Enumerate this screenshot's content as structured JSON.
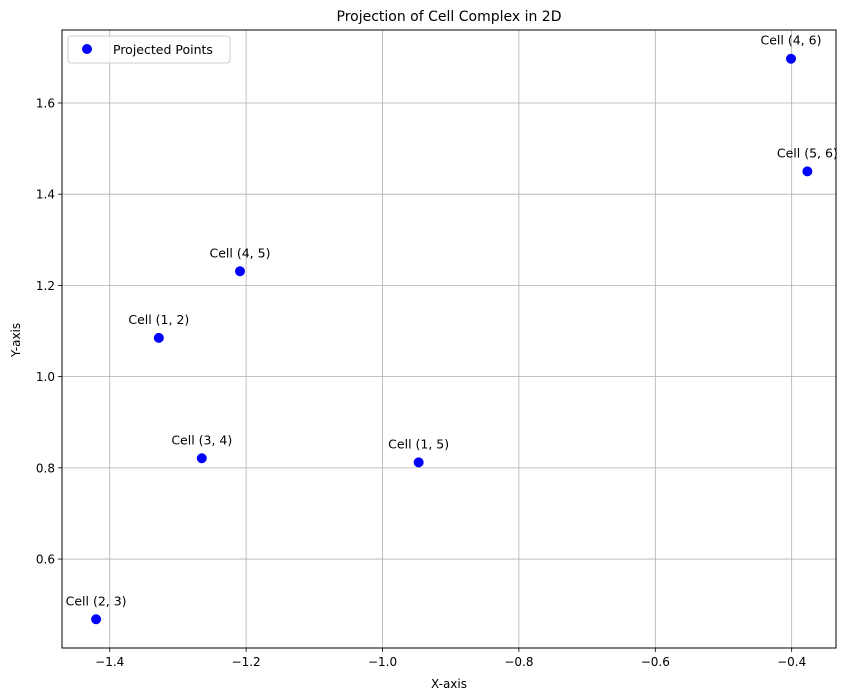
{
  "chart_data": {
    "type": "scatter",
    "title": "Projection of Cell Complex in 2D",
    "xlabel": "X-axis",
    "ylabel": "Y-axis",
    "xlim": [
      -1.47,
      -0.335
    ],
    "ylim": [
      0.405,
      1.76
    ],
    "xticks": [
      -1.4,
      -1.2,
      -1.0,
      -0.8,
      -0.6,
      -0.4
    ],
    "xtick_labels": [
      "−1.4",
      "−1.2",
      "−1.0",
      "−0.8",
      "−0.6",
      "−0.4"
    ],
    "yticks": [
      0.6,
      0.8,
      1.0,
      1.2,
      1.4,
      1.6
    ],
    "ytick_labels": [
      "0.6",
      "0.8",
      "1.0",
      "1.2",
      "1.4",
      "1.6"
    ],
    "grid": true,
    "legend_position": "upper-left",
    "series": [
      {
        "name": "Projected Points",
        "color": "#0000ff",
        "points": [
          {
            "x": -1.328,
            "y": 1.085,
            "label": "Cell (1, 2)"
          },
          {
            "x": -0.947,
            "y": 0.812,
            "label": "Cell (1, 5)"
          },
          {
            "x": -1.42,
            "y": 0.468,
            "label": "Cell (2, 3)"
          },
          {
            "x": -1.265,
            "y": 0.821,
            "label": "Cell (3, 4)"
          },
          {
            "x": -1.209,
            "y": 1.231,
            "label": "Cell (4, 5)"
          },
          {
            "x": -0.401,
            "y": 1.697,
            "label": "Cell (4, 6)"
          },
          {
            "x": -0.377,
            "y": 1.45,
            "label": "Cell (5, 6)"
          }
        ]
      }
    ]
  },
  "colors": {
    "grid": "#b0b0b0",
    "axes": "#000000",
    "legend_border": "#cccccc"
  }
}
